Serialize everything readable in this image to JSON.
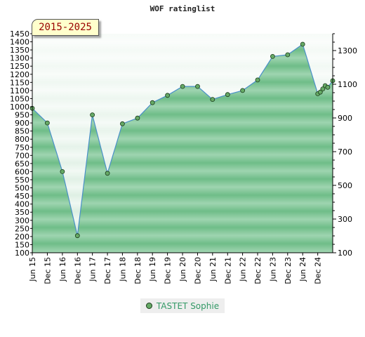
{
  "chart_data": {
    "type": "area",
    "title": "WOF ratinglist",
    "period": "2015-2025",
    "series": [
      {
        "name": "TASTET Sophie",
        "points": [
          {
            "x": "2015-06-01",
            "y": 990
          },
          {
            "x": "2015-12-01",
            "y": 900
          },
          {
            "x": "2016-06-01",
            "y": 600
          },
          {
            "x": "2016-12-01",
            "y": 205
          },
          {
            "x": "2017-06-01",
            "y": 950
          },
          {
            "x": "2017-12-01",
            "y": 590
          },
          {
            "x": "2018-06-01",
            "y": 895
          },
          {
            "x": "2018-12-01",
            "y": 930
          },
          {
            "x": "2019-06-01",
            "y": 1025
          },
          {
            "x": "2019-12-01",
            "y": 1070
          },
          {
            "x": "2020-06-01",
            "y": 1125
          },
          {
            "x": "2020-12-01",
            "y": 1125
          },
          {
            "x": "2021-06-01",
            "y": 1045
          },
          {
            "x": "2021-12-01",
            "y": 1075
          },
          {
            "x": "2022-06-01",
            "y": 1100
          },
          {
            "x": "2022-12-01",
            "y": 1165
          },
          {
            "x": "2023-06-01",
            "y": 1310
          },
          {
            "x": "2023-12-01",
            "y": 1320
          },
          {
            "x": "2024-06-01",
            "y": 1385
          },
          {
            "x": "2024-12-01",
            "y": 1080
          },
          {
            "x": "2025-01-01",
            "y": 1090
          },
          {
            "x": "2025-02-01",
            "y": 1110
          },
          {
            "x": "2025-03-01",
            "y": 1130
          },
          {
            "x": "2025-04-01",
            "y": 1120
          },
          {
            "x": "2025-06-01",
            "y": 1160
          }
        ]
      }
    ],
    "x_ticks": [
      "Jun 15",
      "Dec 15",
      "Jun 16",
      "Dec 16",
      "Jun 17",
      "Dec 17",
      "Jun 18",
      "Dec 18",
      "Jun 19",
      "Dec 19",
      "Jun 20",
      "Dec 20",
      "Jun 21",
      "Dec 21",
      "Jun 22",
      "Dec 22",
      "Jun 23",
      "Dec 23",
      "Jun 24",
      "Dec 24"
    ],
    "x_tick_dates": [
      "2015-06-01",
      "2015-12-01",
      "2016-06-01",
      "2016-12-01",
      "2017-06-01",
      "2017-12-01",
      "2018-06-01",
      "2018-12-01",
      "2019-06-01",
      "2019-12-01",
      "2020-06-01",
      "2020-12-01",
      "2021-06-01",
      "2021-12-01",
      "2022-06-01",
      "2022-12-01",
      "2023-06-01",
      "2023-12-01",
      "2024-06-01",
      "2024-12-01"
    ],
    "xlim": [
      "2015-06-01",
      "2025-06-01"
    ],
    "y_left": {
      "min": 100,
      "max": 1450,
      "step": 50
    },
    "y_right": {
      "min": 100,
      "max": 1400,
      "labels": [
        100,
        300,
        500,
        700,
        900,
        1100,
        1300
      ]
    },
    "grid": false,
    "legend_position": "bottom",
    "colors": {
      "line": "#4a90c8",
      "fill_dark": "#82c89a",
      "fill_light": "#e8f5ec",
      "marker": "#66aa66",
      "legend_text": "#339966"
    }
  }
}
